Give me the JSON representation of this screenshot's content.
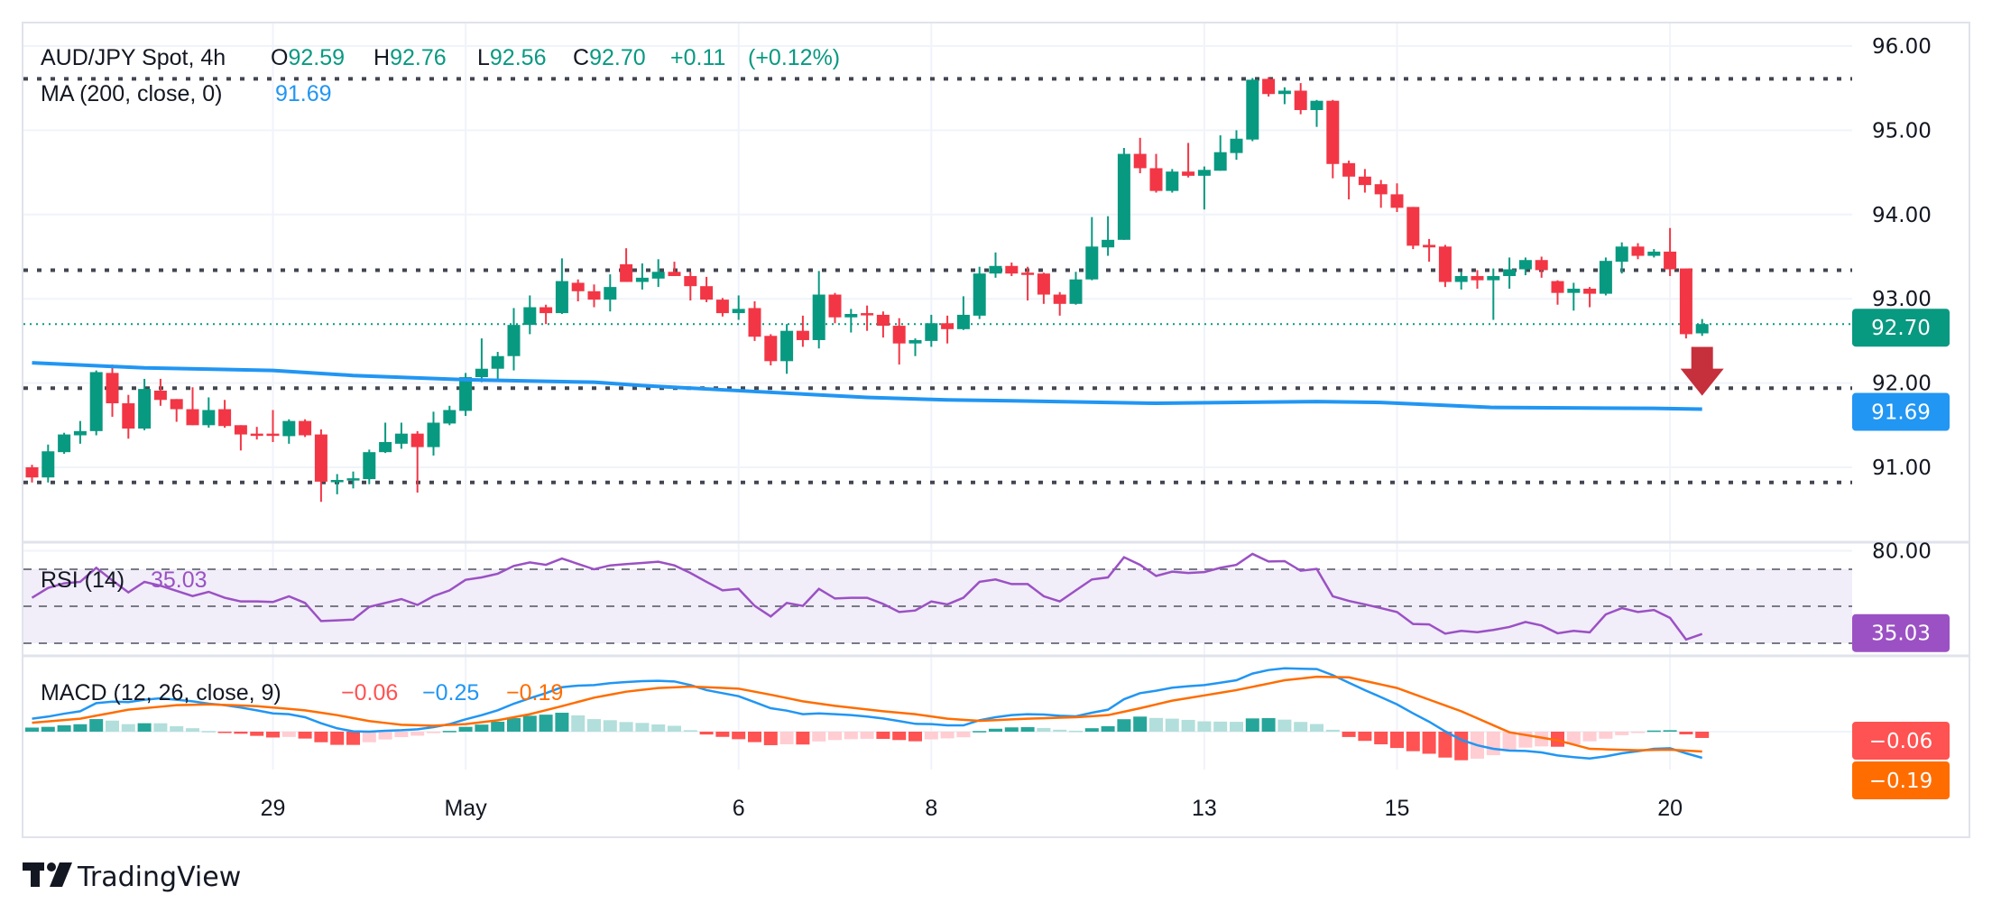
{
  "legend": {
    "symbol": "AUD/JPY Spot, 4h",
    "o_label": "O",
    "o_value": "92.59",
    "h_label": "H",
    "h_value": "92.76",
    "l_label": "L",
    "l_value": "92.56",
    "c_label": "C",
    "c_value": "92.70",
    "change": "+0.11",
    "change_pct": "(+0.12%)",
    "ma_label": "MA (200, close, 0)",
    "ma_value": "91.69",
    "rsi_label": "RSI (14)",
    "rsi_value": "35.03",
    "macd_label": "MACD (12, 26, close, 9)",
    "macd_hist_value": "−0.06",
    "macd_value": "−0.25",
    "macd_signal_value": "−0.19"
  },
  "price_axis": [
    "96.00",
    "95.00",
    "94.00",
    "93.00",
    "92.00",
    "91.00"
  ],
  "rsi_axis": [
    "80.00"
  ],
  "badges": {
    "price": "92.70",
    "ma": "91.69",
    "rsi": "35.03",
    "macd_hist": "−0.06",
    "macd_signal": "−0.19"
  },
  "time_axis": [
    {
      "label": "29",
      "index": 15
    },
    {
      "label": "May",
      "index": 27
    },
    {
      "label": "6",
      "index": 44
    },
    {
      "label": "8",
      "index": 56
    },
    {
      "label": "13",
      "index": 73
    },
    {
      "label": "15",
      "index": 85
    },
    {
      "label": "20",
      "index": 102
    }
  ],
  "branding": {
    "name": "TradingView"
  },
  "colors": {
    "up": "#089981",
    "down": "#f23645",
    "ma": "#2196f3",
    "rsi": "#9b51c4",
    "rsi_band": "#f1edf9",
    "macd": "#2196f3",
    "signal": "#ff6d00",
    "hist_up_strong": "#26a69a",
    "hist_up_weak": "#b2dfdb",
    "hist_down_strong": "#ff5252",
    "hist_down_weak": "#ffcdd2",
    "level": "#434651",
    "arrow": "#c62f3c",
    "grid": "#f0f3fa",
    "border": "#e0e3eb"
  },
  "chart_data": {
    "type": "candlestick",
    "title": "AUD/JPY Spot, 4h",
    "ylim": [
      90.45,
      96.0
    ],
    "yticks": [
      96,
      95,
      94,
      93,
      92,
      91
    ],
    "grid": true,
    "horizontal_levels": [
      95.61,
      93.34,
      91.94,
      90.82
    ],
    "last_price": 92.7,
    "annotation": {
      "type": "down-arrow",
      "index": 104,
      "from": 92.43,
      "to": 91.85
    },
    "candles_ohlc": [
      [
        91.0,
        91.03,
        90.82,
        90.88
      ],
      [
        90.88,
        91.27,
        90.82,
        91.19
      ],
      [
        91.18,
        91.41,
        91.16,
        91.39
      ],
      [
        91.38,
        91.55,
        91.28,
        91.43
      ],
      [
        91.43,
        92.15,
        91.38,
        92.13
      ],
      [
        92.12,
        92.22,
        91.6,
        91.76
      ],
      [
        91.76,
        91.86,
        91.34,
        91.46
      ],
      [
        91.46,
        92.05,
        91.44,
        91.93
      ],
      [
        91.91,
        92.05,
        91.73,
        91.8
      ],
      [
        91.81,
        91.81,
        91.54,
        91.69
      ],
      [
        91.69,
        91.95,
        91.5,
        91.5
      ],
      [
        91.5,
        91.83,
        91.47,
        91.68
      ],
      [
        91.69,
        91.8,
        91.47,
        91.49
      ],
      [
        91.5,
        91.5,
        91.2,
        91.39
      ],
      [
        91.4,
        91.48,
        91.33,
        91.39
      ],
      [
        91.4,
        91.68,
        91.3,
        91.38
      ],
      [
        91.37,
        91.57,
        91.28,
        91.55
      ],
      [
        91.55,
        91.57,
        91.36,
        91.38
      ],
      [
        91.39,
        91.45,
        90.59,
        90.83
      ],
      [
        90.83,
        90.92,
        90.68,
        90.85
      ],
      [
        90.85,
        90.95,
        90.75,
        90.87
      ],
      [
        90.86,
        91.21,
        90.8,
        91.18
      ],
      [
        91.18,
        91.53,
        91.17,
        91.3
      ],
      [
        91.28,
        91.53,
        91.22,
        91.4
      ],
      [
        91.4,
        91.43,
        90.7,
        91.24
      ],
      [
        91.24,
        91.66,
        91.14,
        91.53
      ],
      [
        91.52,
        91.73,
        91.5,
        91.68
      ],
      [
        91.67,
        92.12,
        91.61,
        92.07
      ],
      [
        92.07,
        92.53,
        92.01,
        92.17
      ],
      [
        92.17,
        92.37,
        92.03,
        92.32
      ],
      [
        92.32,
        92.89,
        92.15,
        92.69
      ],
      [
        92.69,
        93.04,
        92.58,
        92.9
      ],
      [
        92.9,
        92.93,
        92.7,
        92.83
      ],
      [
        92.83,
        93.48,
        92.82,
        93.21
      ],
      [
        93.19,
        93.23,
        92.97,
        93.09
      ],
      [
        93.09,
        93.17,
        92.9,
        92.99
      ],
      [
        92.99,
        93.29,
        92.85,
        93.14
      ],
      [
        93.41,
        93.6,
        93.2,
        93.2
      ],
      [
        93.2,
        93.42,
        93.11,
        93.25
      ],
      [
        93.24,
        93.47,
        93.14,
        93.32
      ],
      [
        93.32,
        93.44,
        93.27,
        93.27
      ],
      [
        93.27,
        93.32,
        92.98,
        93.15
      ],
      [
        93.15,
        93.26,
        92.96,
        92.99
      ],
      [
        92.99,
        93.01,
        92.79,
        92.83
      ],
      [
        92.83,
        93.04,
        92.75,
        92.88
      ],
      [
        92.89,
        92.97,
        92.5,
        92.55
      ],
      [
        92.56,
        92.58,
        92.21,
        92.26
      ],
      [
        92.26,
        92.7,
        92.11,
        92.62
      ],
      [
        92.62,
        92.8,
        92.43,
        92.51
      ],
      [
        92.51,
        93.33,
        92.41,
        93.05
      ],
      [
        93.05,
        93.07,
        92.71,
        92.78
      ],
      [
        92.78,
        92.88,
        92.6,
        92.82
      ],
      [
        92.83,
        92.92,
        92.62,
        92.82
      ],
      [
        92.81,
        92.85,
        92.54,
        92.68
      ],
      [
        92.68,
        92.77,
        92.22,
        92.47
      ],
      [
        92.47,
        92.53,
        92.32,
        92.51
      ],
      [
        92.5,
        92.81,
        92.43,
        92.71
      ],
      [
        92.71,
        92.8,
        92.47,
        92.64
      ],
      [
        92.64,
        93.03,
        92.63,
        92.81
      ],
      [
        92.8,
        93.38,
        92.76,
        93.3
      ],
      [
        93.3,
        93.55,
        93.25,
        93.39
      ],
      [
        93.39,
        93.43,
        93.27,
        93.3
      ],
      [
        93.31,
        93.38,
        92.98,
        93.3
      ],
      [
        93.3,
        93.31,
        92.94,
        93.05
      ],
      [
        93.05,
        93.08,
        92.8,
        92.94
      ],
      [
        92.94,
        93.32,
        92.93,
        93.23
      ],
      [
        93.23,
        93.97,
        93.22,
        93.62
      ],
      [
        93.61,
        93.98,
        93.51,
        93.7
      ],
      [
        93.7,
        94.79,
        93.7,
        94.72
      ],
      [
        94.72,
        94.91,
        94.49,
        94.55
      ],
      [
        94.55,
        94.72,
        94.26,
        94.28
      ],
      [
        94.28,
        94.54,
        94.26,
        94.51
      ],
      [
        94.51,
        94.85,
        94.44,
        94.46
      ],
      [
        94.46,
        94.57,
        94.06,
        94.53
      ],
      [
        94.52,
        94.94,
        94.52,
        94.74
      ],
      [
        94.73,
        95.0,
        94.65,
        94.9
      ],
      [
        94.89,
        95.62,
        94.87,
        95.6
      ],
      [
        95.61,
        95.63,
        95.4,
        95.43
      ],
      [
        95.43,
        95.51,
        95.31,
        95.47
      ],
      [
        95.47,
        95.56,
        95.19,
        95.24
      ],
      [
        95.24,
        95.36,
        95.04,
        95.35
      ],
      [
        95.35,
        95.36,
        94.43,
        94.6
      ],
      [
        94.61,
        94.64,
        94.18,
        94.45
      ],
      [
        94.45,
        94.54,
        94.26,
        94.35
      ],
      [
        94.36,
        94.41,
        94.08,
        94.24
      ],
      [
        94.24,
        94.37,
        94.03,
        94.08
      ],
      [
        94.09,
        94.09,
        93.59,
        93.63
      ],
      [
        93.64,
        93.71,
        93.44,
        93.61
      ],
      [
        93.62,
        93.64,
        93.14,
        93.2
      ],
      [
        93.2,
        93.32,
        93.11,
        93.27
      ],
      [
        93.27,
        93.34,
        93.12,
        93.22
      ],
      [
        93.22,
        93.36,
        92.75,
        93.27
      ],
      [
        93.27,
        93.49,
        93.12,
        93.35
      ],
      [
        93.35,
        93.49,
        93.28,
        93.46
      ],
      [
        93.46,
        93.5,
        93.25,
        93.34
      ],
      [
        93.21,
        93.22,
        92.93,
        93.07
      ],
      [
        93.07,
        93.19,
        92.86,
        93.12
      ],
      [
        93.12,
        93.14,
        92.9,
        93.06
      ],
      [
        93.06,
        93.49,
        93.04,
        93.45
      ],
      [
        93.44,
        93.67,
        93.3,
        93.62
      ],
      [
        93.62,
        93.66,
        93.47,
        93.51
      ],
      [
        93.51,
        93.59,
        93.49,
        93.56
      ],
      [
        93.56,
        93.84,
        93.27,
        93.35
      ],
      [
        93.36,
        93.36,
        92.53,
        92.58
      ],
      [
        92.59,
        92.76,
        92.56,
        92.7
      ]
    ],
    "ma200_points": [
      [
        0,
        92.24
      ],
      [
        7,
        92.18
      ],
      [
        15,
        92.15
      ],
      [
        20,
        92.09
      ],
      [
        27,
        92.04
      ],
      [
        35,
        92.01
      ],
      [
        38,
        91.97
      ],
      [
        45,
        91.9
      ],
      [
        52,
        91.83
      ],
      [
        57,
        91.8
      ],
      [
        61,
        91.79
      ],
      [
        70,
        91.76
      ],
      [
        80,
        91.78
      ],
      [
        84,
        91.77
      ],
      [
        91,
        91.71
      ],
      [
        101,
        91.7
      ],
      [
        104,
        91.69
      ]
    ],
    "rsi": {
      "ylim": [
        20,
        80
      ],
      "levels": [
        70,
        50,
        30
      ],
      "values": [
        54.6,
        59.9,
        62.4,
        63.2,
        70.8,
        64.0,
        57.5,
        63.2,
        61.1,
        58.3,
        55.5,
        57.8,
        54.6,
        52.6,
        52.6,
        52.3,
        55.4,
        51.8,
        42.0,
        42.4,
        42.8,
        49.7,
        51.8,
        53.9,
        50.7,
        55.5,
        58.6,
        64.3,
        65.6,
        67.6,
        71.8,
        73.7,
        72.4,
        75.8,
        72.9,
        70.0,
        72.1,
        72.8,
        73.4,
        74.1,
        72.1,
        68.0,
        63.2,
        58.6,
        59.4,
        50.2,
        44.5,
        51.8,
        50.2,
        59.4,
        54.2,
        54.6,
        54.6,
        51.3,
        46.9,
        47.7,
        52.6,
        51.0,
        54.6,
        63.2,
        64.5,
        62.0,
        62.0,
        55.4,
        52.6,
        58.6,
        64.5,
        65.6,
        76.5,
        72.4,
        66.4,
        68.7,
        68.0,
        68.5,
        70.8,
        72.4,
        78.3,
        74.2,
        74.4,
        69.2,
        70.2,
        55.4,
        52.9,
        51.0,
        49.0,
        46.9,
        40.4,
        40.2,
        35.2,
        36.7,
        36.0,
        37.2,
        38.8,
        41.5,
        39.6,
        35.4,
        36.7,
        35.9,
        45.6,
        49.0,
        46.9,
        48.0,
        43.7,
        32.0,
        35.03
      ]
    },
    "macd": {
      "macd": [
        0.124,
        0.144,
        0.172,
        0.195,
        0.273,
        0.287,
        0.282,
        0.305,
        0.319,
        0.305,
        0.29,
        0.267,
        0.253,
        0.23,
        0.204,
        0.175,
        0.167,
        0.138,
        0.08,
        0.032,
        0.003,
        0.0,
        0.009,
        0.014,
        0.023,
        0.043,
        0.072,
        0.118,
        0.158,
        0.204,
        0.267,
        0.319,
        0.368,
        0.425,
        0.44,
        0.445,
        0.463,
        0.474,
        0.483,
        0.486,
        0.48,
        0.445,
        0.397,
        0.368,
        0.339,
        0.282,
        0.224,
        0.201,
        0.167,
        0.175,
        0.167,
        0.158,
        0.144,
        0.126,
        0.101,
        0.075,
        0.072,
        0.06,
        0.06,
        0.109,
        0.138,
        0.158,
        0.167,
        0.164,
        0.152,
        0.147,
        0.181,
        0.21,
        0.31,
        0.368,
        0.391,
        0.42,
        0.434,
        0.445,
        0.468,
        0.491,
        0.555,
        0.589,
        0.606,
        0.601,
        0.598,
        0.54,
        0.468,
        0.397,
        0.33,
        0.261,
        0.175,
        0.095,
        0.003,
        -0.078,
        -0.13,
        -0.164,
        -0.181,
        -0.184,
        -0.198,
        -0.227,
        -0.244,
        -0.256,
        -0.236,
        -0.207,
        -0.187,
        -0.164,
        -0.158,
        -0.207,
        -0.25
      ],
      "signal_points": [
        [
          0,
          0.085
        ],
        [
          3,
          0.124
        ],
        [
          6,
          0.21
        ],
        [
          9,
          0.253
        ],
        [
          11,
          0.261
        ],
        [
          14,
          0.244
        ],
        [
          17,
          0.204
        ],
        [
          19,
          0.158
        ],
        [
          21,
          0.101
        ],
        [
          23,
          0.066
        ],
        [
          25,
          0.057
        ],
        [
          27,
          0.072
        ],
        [
          29,
          0.109
        ],
        [
          31,
          0.167
        ],
        [
          33,
          0.244
        ],
        [
          35,
          0.325
        ],
        [
          37,
          0.382
        ],
        [
          39,
          0.417
        ],
        [
          41,
          0.431
        ],
        [
          44,
          0.411
        ],
        [
          46,
          0.353
        ],
        [
          48,
          0.29
        ],
        [
          50,
          0.247
        ],
        [
          53,
          0.195
        ],
        [
          55,
          0.167
        ],
        [
          57,
          0.124
        ],
        [
          59,
          0.103
        ],
        [
          62,
          0.124
        ],
        [
          65,
          0.138
        ],
        [
          67,
          0.158
        ],
        [
          69,
          0.224
        ],
        [
          71,
          0.296
        ],
        [
          75,
          0.397
        ],
        [
          78,
          0.491
        ],
        [
          80,
          0.525
        ],
        [
          82,
          0.519
        ],
        [
          85,
          0.417
        ],
        [
          89,
          0.195
        ],
        [
          92,
          -0.006
        ],
        [
          95,
          -0.083
        ],
        [
          97,
          -0.164
        ],
        [
          100,
          -0.178
        ],
        [
          102,
          -0.172
        ],
        [
          104,
          -0.19
        ]
      ],
      "histogram": "macd minus signal"
    }
  }
}
